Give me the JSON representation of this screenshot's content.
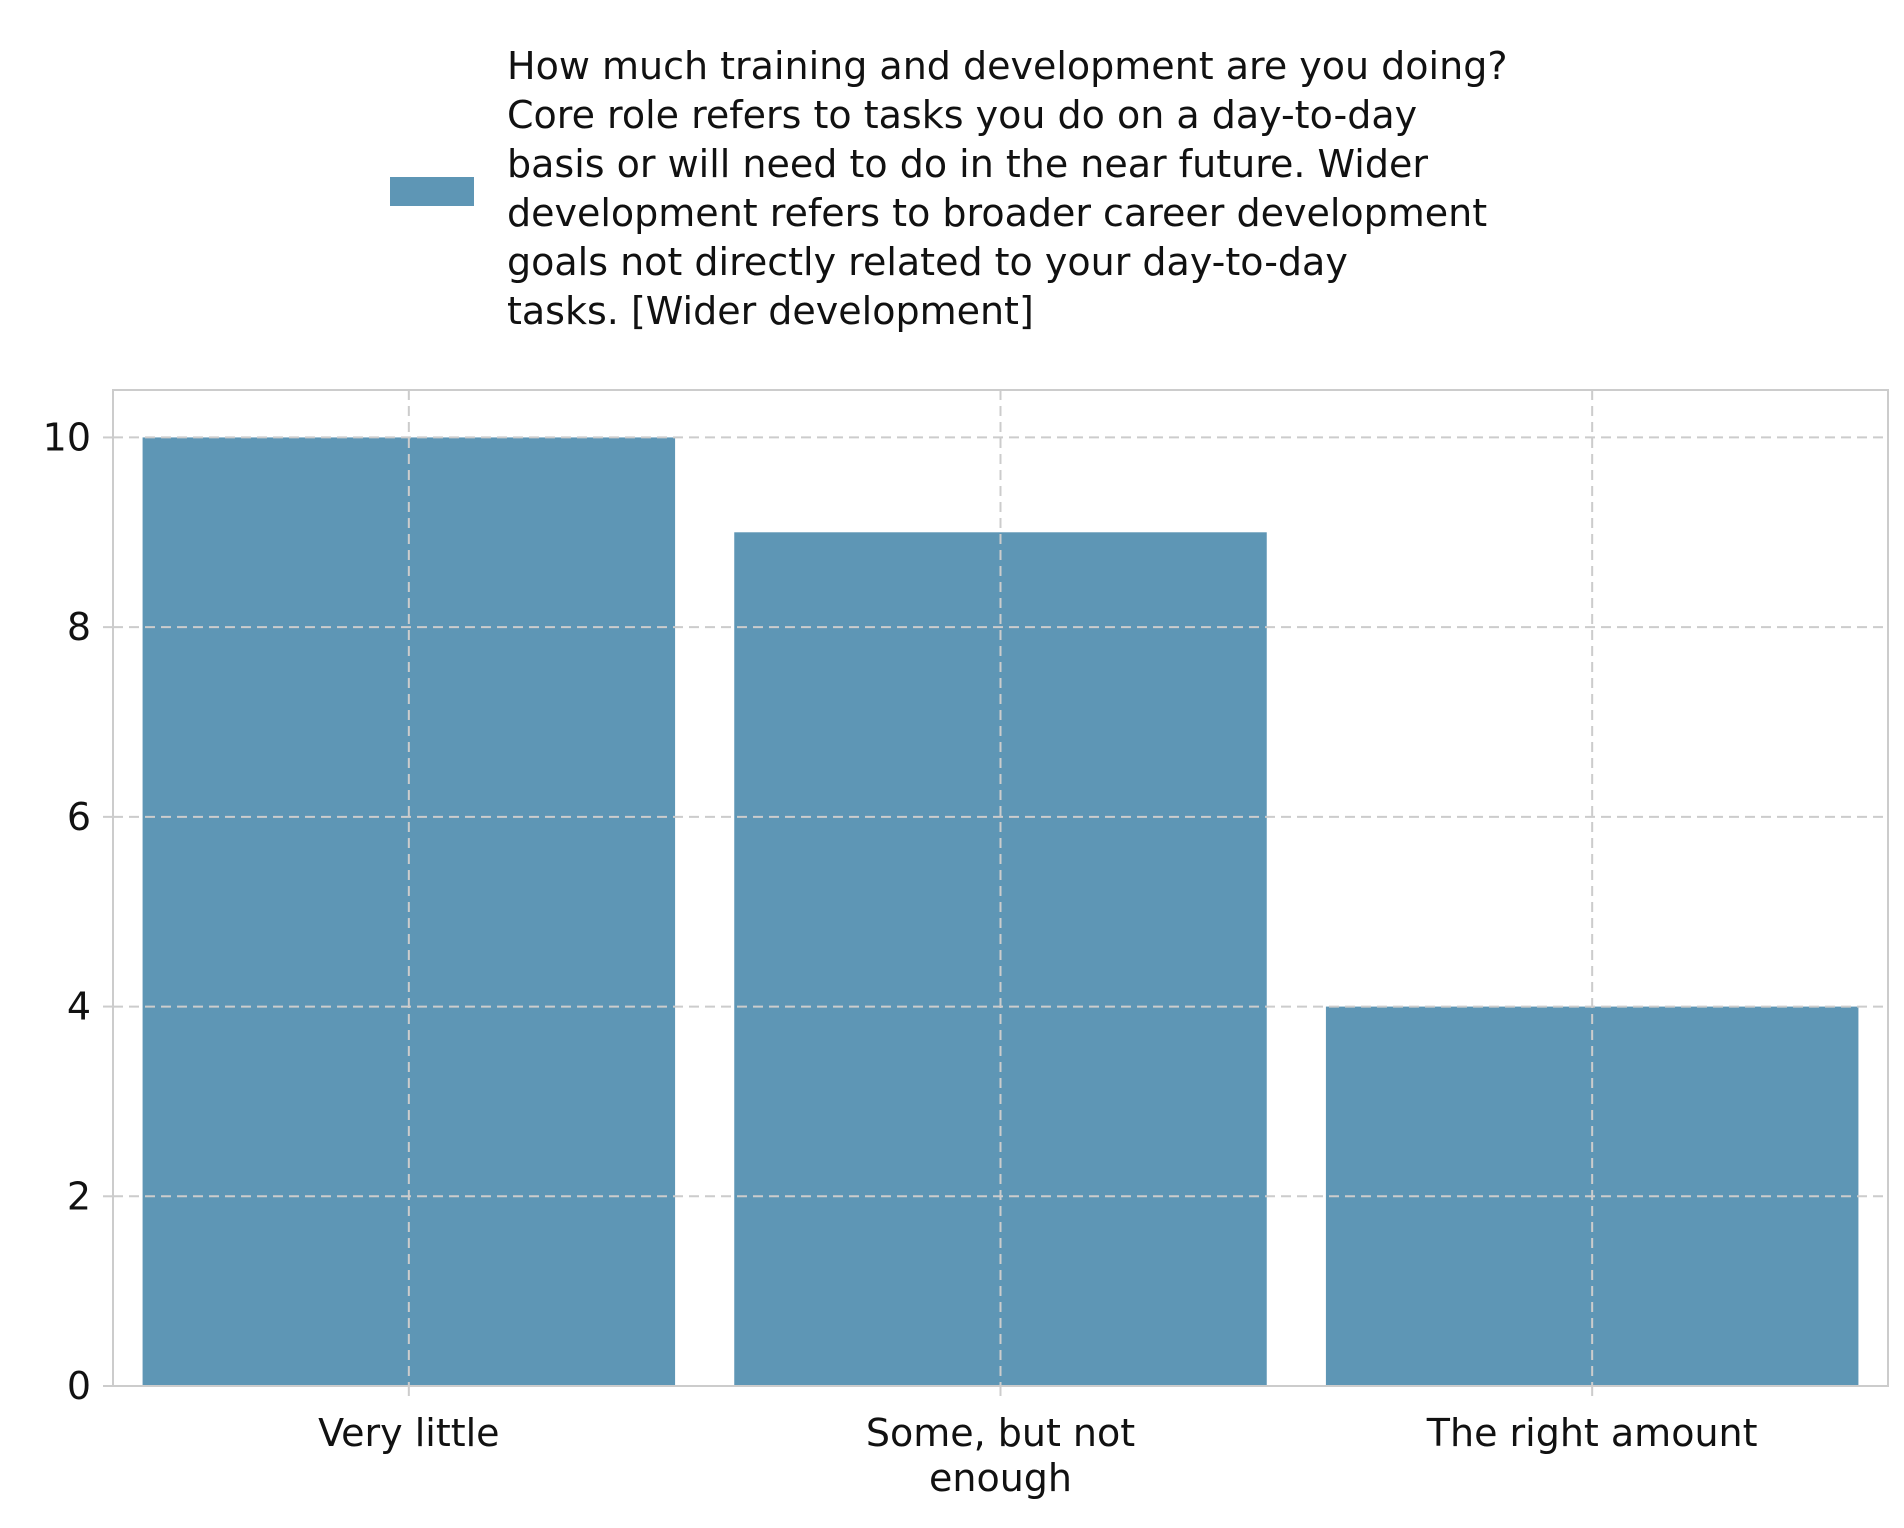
{
  "colors": {
    "bar": "#5e96b5",
    "grid": "#cccccc",
    "axis": "#cccccc",
    "text": "#111111",
    "background": "#ffffff"
  },
  "chart_data": {
    "type": "bar",
    "title": "",
    "xlabel": "",
    "ylabel": "",
    "categories": [
      [
        "Very little"
      ],
      [
        "Some, but not",
        "enough"
      ],
      [
        "The right amount"
      ]
    ],
    "series": [
      {
        "name": "How much training and development are you doing? Core role refers to tasks you do on a day-to-day basis or will need to do in the near future. Wider development refers to broader career development goals not directly related to your day-to-day tasks. [Wider development]",
        "values": [
          10,
          9,
          4
        ]
      }
    ],
    "legend_lines": [
      "How much training and development are you doing?",
      "Core role refers to tasks you do on a day-to-day",
      "basis or will need to do in the near future. Wider",
      "development refers to broader career development",
      "goals not directly related to your day-to-day",
      "tasks. [Wider development]"
    ],
    "yticks": [
      0,
      2,
      4,
      6,
      8,
      10
    ],
    "ylim": [
      0,
      10.5
    ],
    "grid": true,
    "grid_style": "dashed",
    "legend_position": "top-center"
  }
}
